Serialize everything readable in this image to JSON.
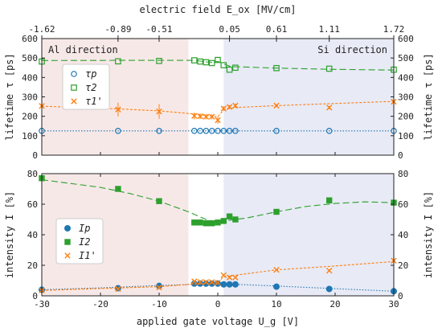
{
  "chart_data": [
    {
      "type": "scatter",
      "panel": "top",
      "top_axis_label": "electric field E_ox [MV/cm]",
      "top_ticks": [
        {
          "label": "-1.62",
          "at_voltage": -30
        },
        {
          "label": "-0.89",
          "at_voltage": -17
        },
        {
          "label": "-0.51",
          "at_voltage": -10
        },
        {
          "label": "0.05",
          "at_voltage": 2
        },
        {
          "label": "0.61",
          "at_voltage": 10
        },
        {
          "label": "1.11",
          "at_voltage": 19
        },
        {
          "label": "1.72",
          "at_voltage": 30
        }
      ],
      "ylabel_left": "lifetime τ [ps]",
      "ylabel_right": "lifetime τ [ps]",
      "ylim": [
        0,
        600
      ],
      "yticks": [
        "0",
        "100",
        "200",
        "300",
        "400",
        "500",
        "600"
      ],
      "region_labels": {
        "left": "Al direction",
        "right": "Si direction"
      },
      "legend": [
        "τp",
        "τ2",
        "τ1'"
      ],
      "series": [
        {
          "name": "τp",
          "color": "#1f77b4",
          "marker": "circle-open",
          "x": [
            -30,
            -17,
            -10,
            -4,
            -3,
            -2,
            -1,
            0,
            1,
            2,
            3,
            10,
            19,
            30
          ],
          "y": [
            125,
            125,
            125,
            125,
            125,
            125,
            125,
            125,
            125,
            125,
            125,
            125,
            125,
            125
          ],
          "fit_x": [
            -30,
            30
          ],
          "fit_y": [
            125,
            125
          ]
        },
        {
          "name": "τ2",
          "color": "#2ca02c",
          "marker": "square-open",
          "x": [
            -30,
            -17,
            -10,
            -4,
            -3,
            -2,
            -1,
            0,
            1,
            2,
            3,
            10,
            19,
            30
          ],
          "y": [
            482,
            483,
            485,
            488,
            482,
            478,
            474,
            490,
            463,
            440,
            450,
            448,
            445,
            440
          ],
          "fit_x": [
            -30,
            -17,
            -10,
            -4,
            -3,
            -2,
            -1,
            0,
            1,
            2,
            3,
            10,
            19,
            30
          ],
          "fit_y": [
            487,
            488,
            488,
            488,
            484,
            480,
            478,
            482,
            470,
            458,
            455,
            448,
            442,
            438
          ]
        },
        {
          "name": "τ1'",
          "color": "#ff7f0e",
          "marker": "x",
          "x": [
            -30,
            -17,
            -10,
            -4,
            -3,
            -2,
            -1,
            0,
            1,
            2,
            3,
            10,
            19,
            30
          ],
          "y": [
            253,
            235,
            225,
            202,
            200,
            198,
            198,
            180,
            240,
            248,
            255,
            255,
            245,
            275
          ],
          "yerr": [
            28,
            35,
            38,
            18,
            15,
            14,
            14,
            18,
            12,
            10,
            10,
            8,
            8,
            8
          ],
          "fit_x": [
            -30,
            -17,
            -10,
            -4,
            -3,
            -2,
            -1,
            0,
            1,
            2,
            3,
            10,
            19,
            30
          ],
          "fit_y": [
            252,
            238,
            228,
            212,
            208,
            204,
            200,
            198,
            232,
            240,
            245,
            255,
            265,
            277
          ]
        }
      ]
    },
    {
      "type": "scatter",
      "panel": "bottom",
      "xlabel": "applied gate voltage U_g [V]",
      "xlim": [
        -30,
        30
      ],
      "xticks": [
        "-30",
        "-20",
        "-10",
        "0",
        "10",
        "20",
        "30"
      ],
      "ylabel_left": "intensity I [%]",
      "ylabel_right": "intensity I [%]",
      "ylim": [
        0,
        80
      ],
      "yticks": [
        "0",
        "20",
        "40",
        "60",
        "80"
      ],
      "legend": [
        "Ip",
        "I2",
        "I1'"
      ],
      "series": [
        {
          "name": "Ip",
          "color": "#1f77b4",
          "marker": "circle",
          "x": [
            -30,
            -17,
            -10,
            -4,
            -3,
            -2,
            -1,
            0,
            1,
            2,
            3,
            10,
            19,
            30
          ],
          "y": [
            4,
            5,
            6.5,
            8,
            8,
            8,
            8,
            8,
            7.5,
            7.5,
            7.5,
            6,
            4.5,
            3
          ],
          "fit_x": [
            -30,
            -20,
            -10,
            0,
            10,
            20,
            30
          ],
          "fit_y": [
            4,
            5.2,
            6.8,
            8,
            6.4,
            4.7,
            3
          ]
        },
        {
          "name": "I2",
          "color": "#2ca02c",
          "marker": "square",
          "x": [
            -30,
            -17,
            -10,
            -4,
            -3,
            -2,
            -1,
            0,
            1,
            2,
            3,
            10,
            19,
            30
          ],
          "y": [
            77,
            70,
            62,
            48,
            48,
            47.5,
            47.5,
            48,
            49,
            52,
            50,
            55,
            62.5,
            61
          ],
          "fit_x": [
            -30,
            -25,
            -20,
            -15,
            -10,
            -5,
            -2,
            0,
            2,
            5,
            10,
            15,
            20,
            25,
            30
          ],
          "fit_y": [
            76,
            73.5,
            71,
            67,
            62,
            55,
            50,
            48,
            49.5,
            51,
            55,
            58.5,
            60.5,
            61.5,
            61
          ]
        },
        {
          "name": "I1'",
          "color": "#ff7f0e",
          "marker": "x",
          "x": [
            -30,
            -17,
            -10,
            -4,
            -3,
            -2,
            -1,
            0,
            1,
            2,
            3,
            10,
            19,
            30
          ],
          "y": [
            3.5,
            4.5,
            5.5,
            9.5,
            9,
            9,
            9,
            8.5,
            13.5,
            12,
            12,
            17,
            16.5,
            23
          ],
          "fit_x": [
            -30,
            -20,
            -10,
            -5,
            0,
            1,
            5,
            10,
            20,
            30
          ],
          "fit_y": [
            3.5,
            4.8,
            6,
            7.5,
            8.5,
            12.5,
            14.5,
            17,
            19.5,
            22.5
          ]
        }
      ]
    }
  ]
}
